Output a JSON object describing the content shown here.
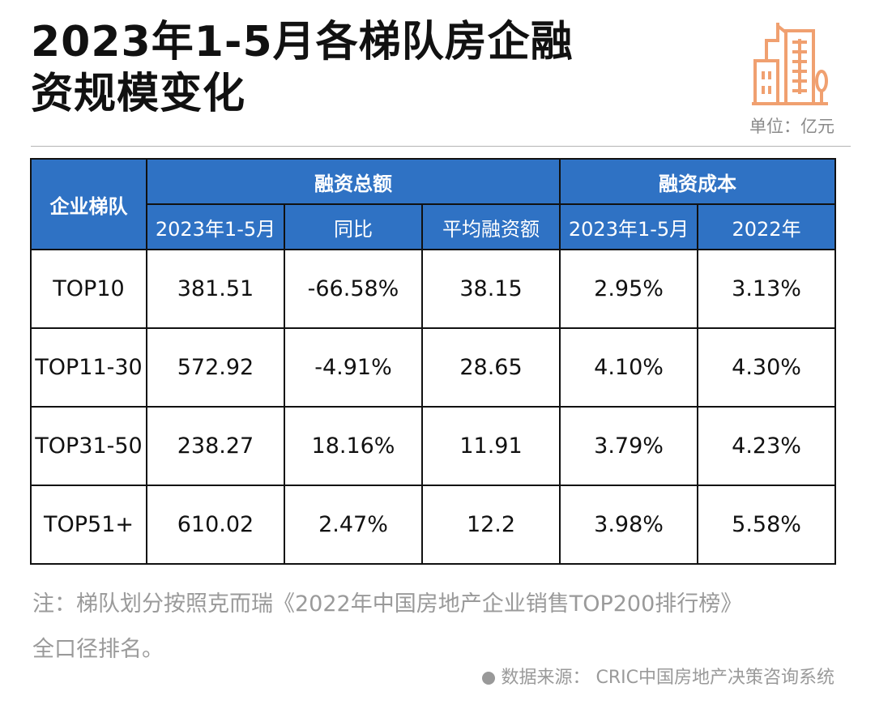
{
  "title": {
    "line1": "2023年1-5月各梯队房企融",
    "line2": "资规模变化"
  },
  "unit": "单位：亿元",
  "colors": {
    "header_bg": "#2f72c4",
    "header_text": "#ffffff",
    "icon": "#f0a070"
  },
  "icon": "building-icon",
  "chart_data": {
    "type": "table",
    "column_groups": [
      {
        "label": "融资总额",
        "columns": [
          "2023年1-5月",
          "同比",
          "平均融资额"
        ]
      },
      {
        "label": "融资成本",
        "columns": [
          "2023年1-5月",
          "2022年"
        ]
      }
    ],
    "row_header_label": "企业梯队",
    "rows": [
      {
        "tier": "TOP10",
        "cells": [
          "381.51",
          "-66.58%",
          "38.15",
          "2.95%",
          "3.13%"
        ]
      },
      {
        "tier": "TOP11-30",
        "cells": [
          "572.92",
          "-4.91%",
          "28.65",
          "4.10%",
          "4.30%"
        ]
      },
      {
        "tier": "TOP31-50",
        "cells": [
          "238.27",
          "18.16%",
          "11.91",
          "3.79%",
          "4.23%"
        ]
      },
      {
        "tier": "TOP51+",
        "cells": [
          "610.02",
          "2.47%",
          "12.2",
          "3.98%",
          "5.58%"
        ]
      }
    ]
  },
  "note": {
    "line1": "注：梯队划分按照克而瑞《2022年中国房地产企业销售TOP200排行榜》",
    "line2": "全口径排名。"
  },
  "source": "数据来源： CRIC中国房地产决策咨询系统"
}
